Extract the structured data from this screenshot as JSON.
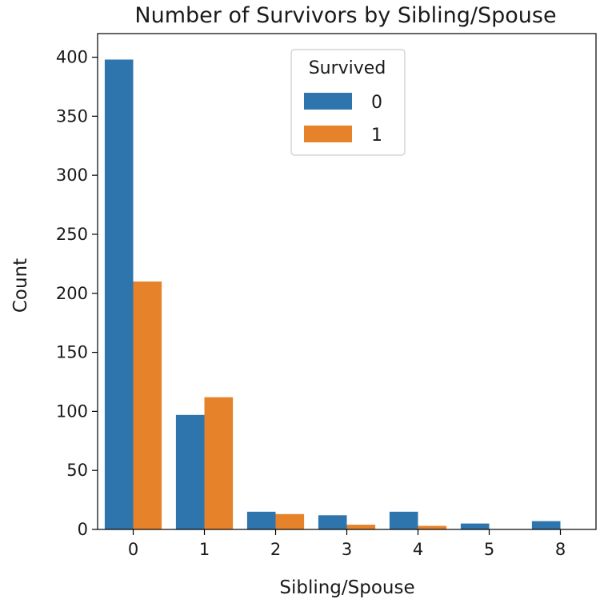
{
  "chart_data": {
    "type": "bar",
    "title": "Number of Survivors by Sibling/Spouse",
    "xlabel": "Sibling/Spouse",
    "ylabel": "Count",
    "categories": [
      "0",
      "1",
      "2",
      "3",
      "4",
      "5",
      "8"
    ],
    "series": [
      {
        "name": "0",
        "color": "#2f75ad",
        "values": [
          398,
          97,
          15,
          12,
          15,
          5,
          7
        ]
      },
      {
        "name": "1",
        "color": "#e5822a",
        "values": [
          210,
          112,
          13,
          4,
          3,
          0,
          0
        ]
      }
    ],
    "ylim": [
      0,
      420
    ],
    "yticks": [
      0,
      50,
      100,
      150,
      200,
      250,
      300,
      350,
      400
    ],
    "grid": false,
    "legend": {
      "title": "Survived",
      "placement": "top-center"
    }
  }
}
